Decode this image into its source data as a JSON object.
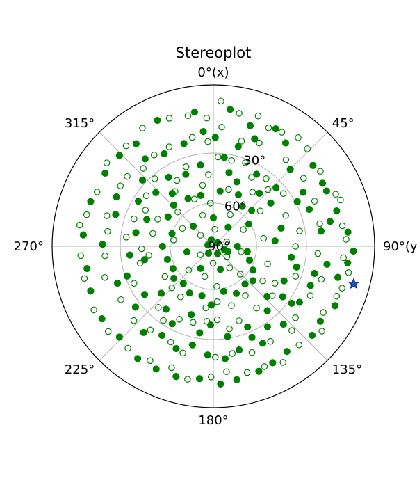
{
  "chart_data": {
    "type": "scatter",
    "projection": "stereonet",
    "title": "Stereoplot",
    "grid": true,
    "colors": {
      "points": "#008000",
      "star": "#1f4fbf",
      "grid": "#b0b0b0",
      "frame": "#000000"
    },
    "azimuth_ticks": [
      {
        "az": 0,
        "label": "0°",
        "suffix": "(x)"
      },
      {
        "az": 45,
        "label": "45°"
      },
      {
        "az": 90,
        "label": "90°",
        "suffix": "(y)"
      },
      {
        "az": 135,
        "label": "135°"
      },
      {
        "az": 180,
        "label": "180°"
      },
      {
        "az": 225,
        "label": "225°"
      },
      {
        "az": 270,
        "label": "270°"
      },
      {
        "az": 315,
        "label": "315°"
      }
    ],
    "dip_rings": [
      {
        "dip": 30,
        "label": "30°"
      },
      {
        "dip": 60,
        "label": "60°"
      },
      {
        "dip": 90,
        "label": "90°"
      }
    ],
    "series": [
      {
        "marker": "filled-circle",
        "points": [
          [
            7,
            9
          ],
          [
            17,
            14
          ],
          [
            28,
            11
          ],
          [
            35,
            14
          ],
          [
            51,
            13
          ],
          [
            60,
            14
          ],
          [
            64,
            14
          ],
          [
            74,
            13
          ],
          [
            78,
            17
          ],
          [
            84,
            10
          ],
          [
            92,
            8
          ],
          [
            97,
            10
          ],
          [
            104,
            13
          ],
          [
            116,
            10
          ],
          [
            125,
            12
          ],
          [
            132,
            11
          ],
          [
            145,
            13
          ],
          [
            153,
            12
          ],
          [
            160,
            11
          ],
          [
            170,
            10
          ],
          [
            177,
            9
          ],
          [
            186,
            11
          ],
          [
            196,
            10
          ],
          [
            205,
            10
          ],
          [
            214,
            10
          ],
          [
            226,
            12
          ],
          [
            237,
            11
          ],
          [
            250,
            12
          ],
          [
            260,
            13
          ],
          [
            275,
            12
          ],
          [
            290,
            12
          ],
          [
            304,
            12
          ],
          [
            314,
            12
          ],
          [
            323,
            13
          ],
          [
            336,
            9
          ],
          [
            352,
            10
          ],
          [
            21,
            19
          ],
          [
            14,
            25
          ],
          [
            45,
            22
          ],
          [
            59,
            24
          ],
          [
            62,
            29
          ],
          [
            69,
            25
          ],
          [
            82,
            22
          ],
          [
            99,
            19
          ],
          [
            105,
            24
          ],
          [
            112,
            24
          ],
          [
            123,
            25
          ],
          [
            126,
            28
          ],
          [
            138,
            24
          ],
          [
            146,
            28
          ],
          [
            153,
            22
          ],
          [
            157,
            27
          ],
          [
            166,
            23
          ],
          [
            174,
            20
          ],
          [
            183,
            22
          ],
          [
            192,
            26
          ],
          [
            200,
            22
          ],
          [
            210,
            25
          ],
          [
            219,
            21
          ],
          [
            232,
            27
          ],
          [
            249,
            25
          ],
          [
            271,
            21
          ],
          [
            288,
            25
          ],
          [
            297,
            22
          ],
          [
            313,
            28
          ],
          [
            322,
            21
          ],
          [
            332,
            24
          ],
          [
            344,
            23
          ],
          [
            355,
            19
          ],
          [
            1,
            22
          ],
          [
            7,
            32
          ],
          [
            12,
            40
          ],
          [
            20,
            44
          ],
          [
            31,
            35
          ],
          [
            41,
            43
          ],
          [
            47,
            34
          ],
          [
            53,
            42
          ],
          [
            75,
            43
          ],
          [
            85,
            48
          ],
          [
            98,
            38
          ],
          [
            104,
            34
          ],
          [
            116,
            38
          ],
          [
            126,
            34
          ],
          [
            133,
            41
          ],
          [
            140,
            35
          ],
          [
            157,
            33
          ],
          [
            171,
            31
          ],
          [
            182,
            38
          ],
          [
            189,
            33
          ],
          [
            198,
            42
          ],
          [
            208,
            33
          ],
          [
            217,
            38
          ],
          [
            228,
            43
          ],
          [
            235,
            35
          ],
          [
            251,
            31
          ],
          [
            259,
            43
          ],
          [
            264,
            35
          ],
          [
            280,
            38
          ],
          [
            292,
            42
          ],
          [
            301,
            33
          ],
          [
            313,
            38
          ],
          [
            322,
            45
          ],
          [
            327,
            36
          ],
          [
            339,
            39
          ],
          [
            351,
            36
          ],
          [
            7,
            52
          ],
          [
            26,
            51
          ],
          [
            36,
            56
          ],
          [
            47,
            54
          ],
          [
            58,
            61
          ],
          [
            99,
            66
          ],
          [
            111,
            63
          ],
          [
            121,
            58
          ],
          [
            131,
            54
          ],
          [
            140,
            56
          ],
          [
            154,
            54
          ],
          [
            167,
            58
          ],
          [
            182,
            50
          ],
          [
            193,
            55
          ],
          [
            207,
            54
          ],
          [
            219,
            57
          ],
          [
            231,
            55
          ],
          [
            241,
            58
          ],
          [
            254,
            57
          ],
          [
            270,
            55
          ],
          [
            287,
            60
          ],
          [
            303,
            53
          ],
          [
            316,
            51
          ],
          [
            332,
            53
          ],
          [
            346,
            54
          ],
          [
            0,
            70
          ],
          [
            38,
            73
          ],
          [
            90,
            73
          ],
          [
            110,
            79
          ],
          [
            163,
            73
          ],
          [
            210,
            72
          ],
          [
            258,
            71
          ],
          [
            315,
            70
          ],
          [
            50,
            86
          ],
          [
            106,
            82
          ],
          [
            150,
            84
          ],
          [
            215,
            84
          ],
          [
            283,
            86
          ],
          [
            342,
            85
          ]
        ]
      },
      {
        "marker": "open-circle",
        "points": [
          [
            3,
            6
          ],
          [
            11,
            10
          ],
          [
            19,
            9
          ],
          [
            25,
            12
          ],
          [
            31,
            11
          ],
          [
            38,
            9
          ],
          [
            44,
            10
          ],
          [
            55,
            12
          ],
          [
            67,
            11
          ],
          [
            70,
            10
          ],
          [
            81,
            12
          ],
          [
            87,
            11
          ],
          [
            95,
            12
          ],
          [
            101,
            9
          ],
          [
            108,
            10
          ],
          [
            112,
            11
          ],
          [
            121,
            13
          ],
          [
            128,
            9
          ],
          [
            139,
            12
          ],
          [
            149,
            10
          ],
          [
            157,
            12
          ],
          [
            165,
            12
          ],
          [
            174,
            14
          ],
          [
            181,
            12
          ],
          [
            191,
            10
          ],
          [
            199,
            13
          ],
          [
            209,
            12
          ],
          [
            220,
            11
          ],
          [
            231,
            10
          ],
          [
            242,
            10
          ],
          [
            256,
            11
          ],
          [
            266,
            11
          ],
          [
            279,
            10
          ],
          [
            284,
            12
          ],
          [
            295,
            13
          ],
          [
            308,
            10
          ],
          [
            319,
            11
          ],
          [
            329,
            9
          ],
          [
            341,
            10
          ],
          [
            349,
            11
          ],
          [
            357,
            13
          ],
          [
            4,
            17
          ],
          [
            15,
            22
          ],
          [
            24,
            20
          ],
          [
            40,
            20
          ],
          [
            53,
            20
          ],
          [
            66,
            21
          ],
          [
            78,
            22
          ],
          [
            94,
            24
          ],
          [
            107,
            20
          ],
          [
            117,
            22
          ],
          [
            131,
            22
          ],
          [
            137,
            19
          ],
          [
            149,
            21
          ],
          [
            160,
            20
          ],
          [
            170,
            22
          ],
          [
            179,
            21
          ],
          [
            196,
            21
          ],
          [
            204,
            24
          ],
          [
            217,
            24
          ],
          [
            227,
            22
          ],
          [
            240,
            23
          ],
          [
            254,
            20
          ],
          [
            265,
            22
          ],
          [
            278,
            23
          ],
          [
            286,
            21
          ],
          [
            303,
            21
          ],
          [
            309,
            21
          ],
          [
            318,
            24
          ],
          [
            327,
            22
          ],
          [
            336,
            22
          ],
          [
            349,
            21
          ],
          [
            357,
            24
          ],
          [
            3,
            32
          ],
          [
            12,
            33
          ],
          [
            21,
            32
          ],
          [
            29,
            38
          ],
          [
            38,
            34
          ],
          [
            44,
            38
          ],
          [
            53,
            33
          ],
          [
            67,
            38
          ],
          [
            80,
            33
          ],
          [
            90,
            36
          ],
          [
            110,
            33
          ],
          [
            121,
            42
          ],
          [
            130,
            39
          ],
          [
            145,
            40
          ],
          [
            161,
            38
          ],
          [
            169,
            35
          ],
          [
            177,
            41
          ],
          [
            185,
            40
          ],
          [
            195,
            38
          ],
          [
            205,
            37
          ],
          [
            214,
            32
          ],
          [
            222,
            36
          ],
          [
            245,
            33
          ],
          [
            257,
            40
          ],
          [
            268,
            42
          ],
          [
            276,
            33
          ],
          [
            289,
            35
          ],
          [
            298,
            39
          ],
          [
            307,
            35
          ],
          [
            319,
            32
          ],
          [
            331,
            40
          ],
          [
            341,
            35
          ],
          [
            356,
            42
          ],
          [
            15,
            50
          ],
          [
            36,
            45
          ],
          [
            53,
            50
          ],
          [
            81,
            55
          ],
          [
            108,
            51
          ],
          [
            125,
            49
          ],
          [
            147,
            50
          ],
          [
            163,
            48
          ],
          [
            176,
            52
          ],
          [
            187,
            48
          ],
          [
            213,
            49
          ],
          [
            225,
            50
          ],
          [
            238,
            51
          ],
          [
            262,
            46
          ],
          [
            282,
            48
          ],
          [
            296,
            48
          ],
          [
            314,
            56
          ],
          [
            325,
            45
          ],
          [
            338,
            55
          ],
          [
            350,
            48
          ],
          [
            28,
            65
          ],
          [
            61,
            66
          ],
          [
            101,
            70
          ],
          [
            136,
            63
          ],
          [
            143,
            71
          ],
          [
            175,
            62
          ],
          [
            196,
            68
          ],
          [
            226,
            66
          ],
          [
            279,
            62
          ],
          [
            300,
            65
          ],
          [
            341,
            67
          ],
          [
            356,
            60
          ],
          [
            5,
            78
          ],
          [
            72,
            80
          ],
          [
            127,
            78
          ],
          [
            181,
            78
          ],
          [
            237,
            79
          ],
          [
            311,
            78
          ]
        ]
      },
      {
        "marker": "star",
        "points": [
          [
            105,
            6
          ]
        ]
      }
    ]
  }
}
